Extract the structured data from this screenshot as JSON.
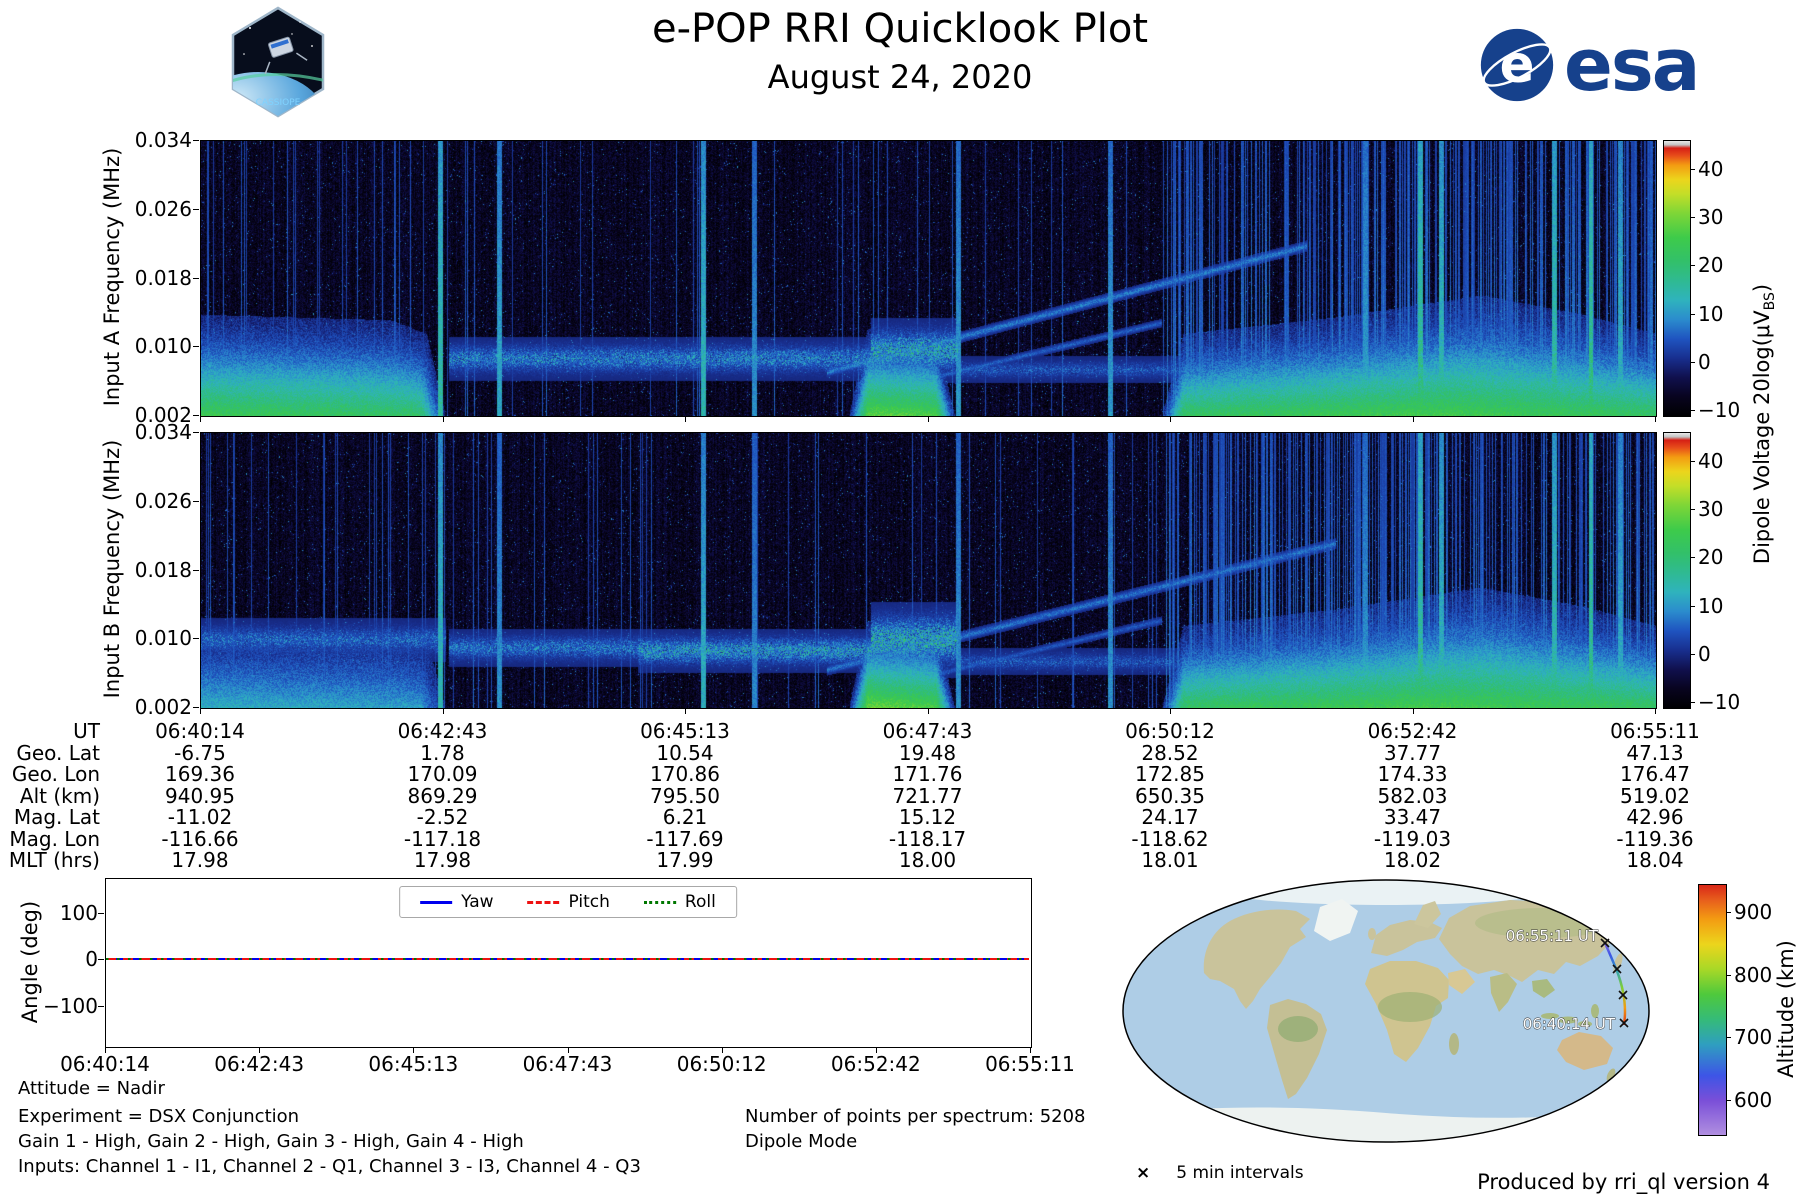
{
  "header": {
    "title": "e-POP RRI Quicklook Plot",
    "subtitle": "August 24, 2020",
    "patch_label": "CASSIOPE",
    "esa_logo_text": "esa"
  },
  "colors": {
    "esa_blue": "#16418c",
    "ocean": "#aecde6",
    "land": "#c9c39b",
    "yaw": "#0000ee",
    "pitch": "#ee1111",
    "roll": "#007700"
  },
  "chart_data": [
    {
      "type": "heatmap",
      "id": "input-a",
      "ylabel": "Input A Frequency (MHz)",
      "ytick_labels": [
        "0.034",
        "0.026",
        "0.018",
        "0.010",
        "0.002"
      ],
      "ylim_mhz": [
        0.002,
        0.034
      ],
      "x_range_ut": [
        "06:40:14",
        "06:55:11"
      ],
      "colorbar": {
        "label_prefix": "Dipole Voltage 20log(μV",
        "label_sub": "BS",
        "label_suffix": ")",
        "tick_labels": [
          "40",
          "30",
          "20",
          "10",
          "0",
          "−10"
        ],
        "tick_values": [
          40,
          30,
          20,
          10,
          0,
          -10
        ],
        "range": [
          -11,
          46
        ],
        "stops": [
          [
            -11,
            "#000002"
          ],
          [
            -7,
            "#08041f"
          ],
          [
            -3,
            "#10104d"
          ],
          [
            1,
            "#182f8f"
          ],
          [
            5,
            "#1f54c0"
          ],
          [
            9,
            "#2b8ccd"
          ],
          [
            13,
            "#2fb3bd"
          ],
          [
            17,
            "#2fba92"
          ],
          [
            21,
            "#32c06a"
          ],
          [
            26,
            "#3ecb4a"
          ],
          [
            31,
            "#7ed637"
          ],
          [
            35,
            "#c3de28"
          ],
          [
            38,
            "#ecd51c"
          ],
          [
            41,
            "#f39c12"
          ],
          [
            43,
            "#e74c1a"
          ],
          [
            44.5,
            "#d62015"
          ],
          [
            45.2,
            "#c2c2c2"
          ],
          [
            46,
            "#e9e9e9"
          ]
        ]
      },
      "texture": {
        "seed": 42,
        "bg": -7,
        "speckle": 3.5,
        "floor": [
          [
            0,
            0.37
          ],
          [
            0.13,
            0.35
          ],
          [
            0.155,
            0.3
          ],
          [
            0.168,
            0
          ],
          [
            0.445,
            0
          ],
          [
            0.458,
            0.32
          ],
          [
            0.505,
            0.3
          ],
          [
            0.518,
            0
          ],
          [
            0.66,
            0
          ],
          [
            0.675,
            0.3
          ],
          [
            0.78,
            0.36
          ],
          [
            0.88,
            0.44
          ],
          [
            0.95,
            0.37
          ],
          [
            1,
            0.3
          ]
        ],
        "floor_gain": [
          [
            0,
            25
          ],
          [
            0.15,
            22
          ],
          [
            0.168,
            0
          ],
          [
            0.445,
            0
          ],
          [
            0.458,
            29
          ],
          [
            0.505,
            27
          ],
          [
            0.518,
            0
          ],
          [
            0.66,
            0
          ],
          [
            0.675,
            23
          ],
          [
            0.85,
            26
          ],
          [
            1,
            23
          ]
        ],
        "bands": [
          {
            "x0": 0.17,
            "x1": 0.46,
            "y": 0.21,
            "w": 0.04,
            "gain": 16
          },
          {
            "x0": 0.46,
            "x1": 0.52,
            "y": 0.24,
            "w": 0.06,
            "gain": 22
          },
          {
            "x0": 0.52,
            "x1": 0.68,
            "y": 0.17,
            "w": 0.025,
            "gain": 9
          }
        ],
        "diags": [
          {
            "x0": 0.43,
            "y0": 0.16,
            "x1": 0.76,
            "y1": 0.62,
            "w": 0.012,
            "gain": 11
          },
          {
            "x0": 0.47,
            "y0": 0.1,
            "x1": 0.66,
            "y1": 0.34,
            "w": 0.009,
            "gain": 8
          }
        ],
        "streaks": [
          {
            "x0": 0,
            "x1": 0.168,
            "p": 0.1,
            "gain": 9
          },
          {
            "x0": 0.168,
            "x1": 0.66,
            "p": 0.05,
            "gain": 8
          },
          {
            "x0": 0.66,
            "x1": 1,
            "p": 0.45,
            "gain": 11
          }
        ],
        "lines": [
          {
            "x": 0.164,
            "gain": 20
          },
          {
            "x": 0.205,
            "gain": 15
          },
          {
            "x": 0.345,
            "gain": 18
          },
          {
            "x": 0.38,
            "gain": 12
          },
          {
            "x": 0.52,
            "gain": 13
          },
          {
            "x": 0.625,
            "gain": 13
          },
          {
            "x": 0.8,
            "gain": 14
          },
          {
            "x": 0.838,
            "gain": 23
          },
          {
            "x": 0.852,
            "gain": 19
          },
          {
            "x": 0.93,
            "gain": 21
          },
          {
            "x": 0.955,
            "gain": 24
          },
          {
            "x": 0.975,
            "gain": 17
          }
        ]
      }
    },
    {
      "type": "heatmap",
      "id": "input-b",
      "ylabel": "Input B Frequency (MHz)",
      "ytick_labels": [
        "0.034",
        "0.026",
        "0.018",
        "0.010",
        "0.002"
      ],
      "ylim_mhz": [
        0.002,
        0.034
      ],
      "x_range_ut": [
        "06:40:14",
        "06:55:11"
      ],
      "colorbar": {
        "label_prefix": "Dipole Voltage 20log(μV",
        "label_sub": "BS",
        "label_suffix": ")",
        "tick_labels": [
          "40",
          "30",
          "20",
          "10",
          "0",
          "−10"
        ],
        "tick_values": [
          40,
          30,
          20,
          10,
          0,
          -10
        ],
        "range": [
          -11,
          46
        ],
        "stops": [
          [
            -11,
            "#000002"
          ],
          [
            -7,
            "#08041f"
          ],
          [
            -3,
            "#10104d"
          ],
          [
            1,
            "#182f8f"
          ],
          [
            5,
            "#1f54c0"
          ],
          [
            9,
            "#2b8ccd"
          ],
          [
            13,
            "#2fb3bd"
          ],
          [
            17,
            "#2fba92"
          ],
          [
            21,
            "#32c06a"
          ],
          [
            26,
            "#3ecb4a"
          ],
          [
            31,
            "#7ed637"
          ],
          [
            35,
            "#c3de28"
          ],
          [
            38,
            "#ecd51c"
          ],
          [
            41,
            "#f39c12"
          ],
          [
            43,
            "#e74c1a"
          ],
          [
            44.5,
            "#d62015"
          ],
          [
            45.2,
            "#c2c2c2"
          ],
          [
            46,
            "#e9e9e9"
          ]
        ]
      },
      "texture": {
        "seed": 77,
        "bg": -7,
        "speckle": 3.5,
        "floor": [
          [
            0,
            0.3
          ],
          [
            0.13,
            0.28
          ],
          [
            0.155,
            0.25
          ],
          [
            0.168,
            0
          ],
          [
            0.445,
            0
          ],
          [
            0.458,
            0.32
          ],
          [
            0.505,
            0.3
          ],
          [
            0.518,
            0
          ],
          [
            0.66,
            0
          ],
          [
            0.675,
            0.3
          ],
          [
            0.78,
            0.36
          ],
          [
            0.88,
            0.44
          ],
          [
            0.95,
            0.37
          ],
          [
            1,
            0.3
          ]
        ],
        "floor_gain": [
          [
            0,
            13
          ],
          [
            0.15,
            11
          ],
          [
            0.168,
            0
          ],
          [
            0.445,
            0
          ],
          [
            0.458,
            30
          ],
          [
            0.505,
            27
          ],
          [
            0.518,
            0
          ],
          [
            0.66,
            0
          ],
          [
            0.675,
            23
          ],
          [
            0.85,
            26
          ],
          [
            1,
            23
          ]
        ],
        "bands": [
          {
            "x0": 0,
            "x1": 0.168,
            "y": 0.25,
            "w": 0.04,
            "gain": 12
          },
          {
            "x0": 0.17,
            "x1": 0.3,
            "y": 0.22,
            "w": 0.035,
            "gain": 14
          },
          {
            "x0": 0.3,
            "x1": 0.46,
            "y": 0.21,
            "w": 0.04,
            "gain": 20
          },
          {
            "x0": 0.46,
            "x1": 0.52,
            "y": 0.25,
            "w": 0.07,
            "gain": 24
          },
          {
            "x0": 0.52,
            "x1": 0.68,
            "y": 0.17,
            "w": 0.025,
            "gain": 9
          }
        ],
        "diags": [
          {
            "x0": 0.43,
            "y0": 0.14,
            "x1": 0.78,
            "y1": 0.6,
            "w": 0.012,
            "gain": 10
          },
          {
            "x0": 0.47,
            "y0": 0.08,
            "x1": 0.66,
            "y1": 0.32,
            "w": 0.009,
            "gain": 7
          }
        ],
        "streaks": [
          {
            "x0": 0,
            "x1": 0.168,
            "p": 0.12,
            "gain": 8
          },
          {
            "x0": 0.168,
            "x1": 0.66,
            "p": 0.05,
            "gain": 8
          },
          {
            "x0": 0.66,
            "x1": 1,
            "p": 0.45,
            "gain": 11
          }
        ],
        "lines": [
          {
            "x": 0.164,
            "gain": 18
          },
          {
            "x": 0.205,
            "gain": 12
          },
          {
            "x": 0.345,
            "gain": 16
          },
          {
            "x": 0.38,
            "gain": 11
          },
          {
            "x": 0.52,
            "gain": 12
          },
          {
            "x": 0.625,
            "gain": 12
          },
          {
            "x": 0.8,
            "gain": 13
          },
          {
            "x": 0.838,
            "gain": 22
          },
          {
            "x": 0.852,
            "gain": 18
          },
          {
            "x": 0.93,
            "gain": 20
          },
          {
            "x": 0.955,
            "gain": 23
          },
          {
            "x": 0.975,
            "gain": 16
          }
        ]
      }
    },
    {
      "type": "table",
      "id": "ephemeris",
      "rows": [
        {
          "label": "UT",
          "values": [
            "06:40:14",
            "06:42:43",
            "06:45:13",
            "06:47:43",
            "06:50:12",
            "06:52:42",
            "06:55:11"
          ]
        },
        {
          "label": "Geo. Lat",
          "values": [
            "-6.75",
            "1.78",
            "10.54",
            "19.48",
            "28.52",
            "37.77",
            "47.13"
          ]
        },
        {
          "label": "Geo. Lon",
          "values": [
            "169.36",
            "170.09",
            "170.86",
            "171.76",
            "172.85",
            "174.33",
            "176.47"
          ]
        },
        {
          "label": "Alt (km)",
          "values": [
            "940.95",
            "869.29",
            "795.50",
            "721.77",
            "650.35",
            "582.03",
            "519.02"
          ]
        },
        {
          "label": "Mag. Lat",
          "values": [
            "-11.02",
            "-2.52",
            "6.21",
            "15.12",
            "24.17",
            "33.47",
            "42.96"
          ]
        },
        {
          "label": "Mag. Lon",
          "values": [
            "-116.66",
            "-117.18",
            "-117.69",
            "-118.17",
            "-118.62",
            "-119.03",
            "-119.36"
          ]
        },
        {
          "label": "MLT (hrs)",
          "values": [
            "17.98",
            "17.98",
            "17.99",
            "18.00",
            "18.01",
            "18.02",
            "18.04"
          ]
        }
      ]
    },
    {
      "type": "line",
      "id": "attitude",
      "ylabel": "Angle (deg)",
      "ylim": [
        -187,
        175
      ],
      "ytick_labels": [
        "100",
        "0",
        "−100"
      ],
      "ytick_values": [
        100,
        0,
        -100
      ],
      "xtick_labels": [
        "06:40:14",
        "06:42:43",
        "06:45:13",
        "06:47:43",
        "06:50:12",
        "06:52:42",
        "06:55:11"
      ],
      "legend_position": "top center",
      "series": [
        {
          "name": "Yaw",
          "style": "solid",
          "color": "#0000ee",
          "value": 0
        },
        {
          "name": "Pitch",
          "style": "dashed",
          "color": "#ee1111",
          "value": 0
        },
        {
          "name": "Roll",
          "style": "dotted",
          "color": "#007700",
          "value": 0
        }
      ]
    },
    {
      "type": "map",
      "id": "ground-track",
      "track_start_label": "06:40:14 UT",
      "track_end_label": "06:55:11 UT",
      "marker_glyph": "×",
      "marker_legend": "5 min intervals",
      "colorbar": {
        "label": "Altitude (km)",
        "tick_labels": [
          "900",
          "800",
          "700",
          "600"
        ],
        "tick_values": [
          900,
          800,
          700,
          600
        ],
        "range": [
          545,
          945
        ],
        "stops": [
          [
            545,
            "#b08fe0"
          ],
          [
            600,
            "#7a4fd8"
          ],
          [
            640,
            "#3d55e6"
          ],
          [
            690,
            "#2f9fbf"
          ],
          [
            730,
            "#35bb78"
          ],
          [
            770,
            "#4fc93c"
          ],
          [
            810,
            "#a8d827"
          ],
          [
            850,
            "#ecd51c"
          ],
          [
            890,
            "#f39c12"
          ],
          [
            920,
            "#e8601c"
          ],
          [
            945,
            "#d92818"
          ]
        ]
      }
    }
  ],
  "annotations": {
    "attitude": "Attitude = Nadir",
    "experiment": "Experiment = DSX Conjunction",
    "gains": "Gain 1 - High, Gain 2 - High, Gain 3 - High, Gain 4 - High",
    "inputs": "Inputs: Channel 1 - I1, Channel 2 - Q1, Channel 3 - I3, Channel 4 - Q3",
    "points_per_spectrum": "Number of points per spectrum: 5208",
    "mode": "Dipole Mode",
    "produced_by": "Produced by rri_ql version 4"
  }
}
